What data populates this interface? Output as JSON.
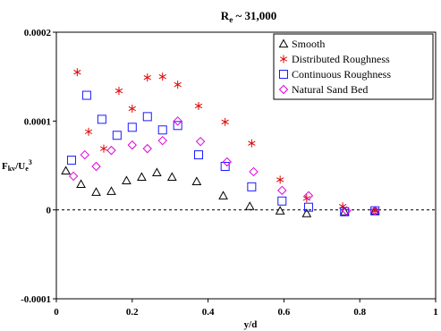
{
  "chart_data": {
    "type": "scatter",
    "title": "R",
    "title_sub": "e",
    "title_rest": " ~ 31,000",
    "xlabel": "y/d",
    "ylabel_main": "F",
    "ylabel_sub1": "kv",
    "ylabel_mid": "/U",
    "ylabel_sub2": "e",
    "ylabel_sup": "3",
    "xlim": [
      0,
      1
    ],
    "ylim": [
      -0.0001,
      0.0002
    ],
    "x_ticks": [
      0,
      0.2,
      0.4,
      0.6,
      0.8,
      1
    ],
    "x_tick_labels": [
      "0",
      "0.2",
      "0.4",
      "0.6",
      "0.8",
      "1"
    ],
    "y_ticks": [
      -0.0001,
      0,
      0.0001,
      0.0002
    ],
    "y_tick_labels": [
      "-0.0001",
      "0",
      "0.0001",
      "0.0002"
    ],
    "zero_reference_line": true,
    "grid": false,
    "legend_position": "top-right",
    "series": [
      {
        "name": "Smooth",
        "marker": "triangle",
        "color": "#000000",
        "x": [
          0.025,
          0.065,
          0.105,
          0.145,
          0.185,
          0.225,
          0.265,
          0.305,
          0.37,
          0.44,
          0.51,
          0.59,
          0.66,
          0.76,
          0.84
        ],
        "y": [
          4.4e-05,
          2.9e-05,
          2e-05,
          2.1e-05,
          3.3e-05,
          3.7e-05,
          4.2e-05,
          3.7e-05,
          3.2e-05,
          1.6e-05,
          4e-06,
          -1e-06,
          -4e-06,
          -2e-06,
          -1e-06
        ]
      },
      {
        "name": "Distributed Roughness",
        "marker": "asterisk",
        "color": "#e00000",
        "x": [
          0.055,
          0.085,
          0.125,
          0.165,
          0.2,
          0.24,
          0.28,
          0.32,
          0.375,
          0.445,
          0.515,
          0.59,
          0.66,
          0.755,
          0.84
        ],
        "y": [
          0.000155,
          8.8e-05,
          6.9e-05,
          0.000134,
          0.000114,
          0.000149,
          0.00015,
          0.000141,
          0.000117,
          9.9e-05,
          7.5e-05,
          3.4e-05,
          1.3e-05,
          4e-06,
          -1e-06
        ]
      },
      {
        "name": "Continuous Roughness",
        "marker": "square",
        "color": "#1a1aff",
        "x": [
          0.04,
          0.08,
          0.12,
          0.16,
          0.2,
          0.24,
          0.28,
          0.32,
          0.375,
          0.445,
          0.515,
          0.595,
          0.665,
          0.76,
          0.84
        ],
        "y": [
          5.6e-05,
          0.000129,
          0.000102,
          8.4e-05,
          9.3e-05,
          0.000105,
          9e-05,
          9.5e-05,
          6.2e-05,
          4.9e-05,
          2.6e-05,
          1e-05,
          3e-06,
          -2e-06,
          -1e-06
        ]
      },
      {
        "name": "Natural Sand Bed",
        "marker": "diamond",
        "color": "#e000e0",
        "x": [
          0.045,
          0.075,
          0.105,
          0.145,
          0.2,
          0.24,
          0.28,
          0.32,
          0.38,
          0.45,
          0.52,
          0.595,
          0.665,
          0.765,
          0.84
        ],
        "y": [
          3.8e-05,
          6.2e-05,
          4.9e-05,
          6.7e-05,
          7.3e-05,
          6.9e-05,
          7.8e-05,
          0.0001,
          7.7e-05,
          5.4e-05,
          4.3e-05,
          2.2e-05,
          1.6e-05,
          -1e-06,
          -1e-06
        ]
      }
    ]
  }
}
